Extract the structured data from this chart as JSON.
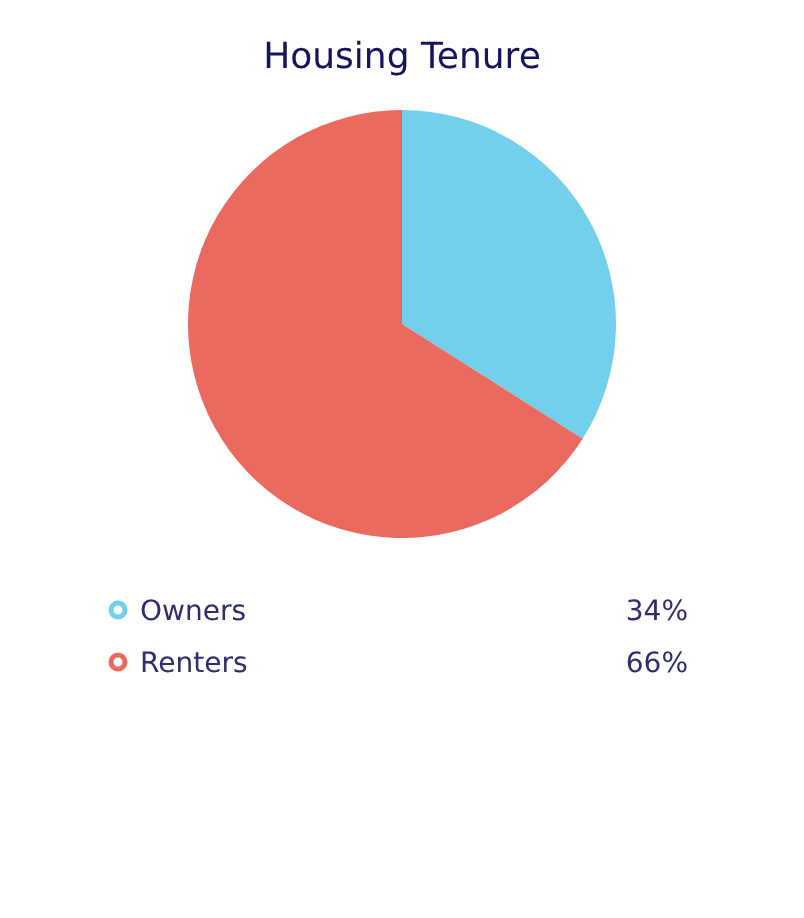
{
  "chart_data": {
    "type": "pie",
    "title": "Housing Tenure",
    "categories": [
      "Owners",
      "Renters"
    ],
    "values": [
      34,
      66
    ],
    "colors": [
      "#72d0ec",
      "#ea6a60"
    ],
    "value_labels": [
      "34%",
      "66%"
    ],
    "legend": "bottom"
  }
}
